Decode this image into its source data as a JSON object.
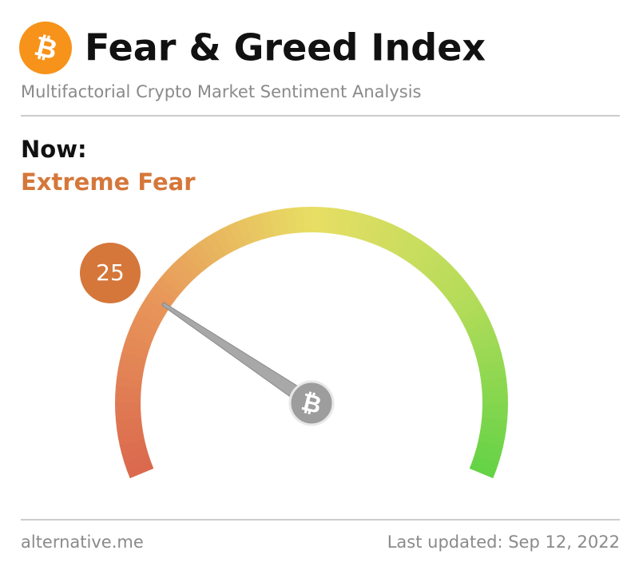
{
  "chart_data": {
    "type": "gauge",
    "title": "Fear & Greed Index",
    "subtitle": "Multifactorial Crypto Market Sentiment Analysis",
    "label": "Now:",
    "classification": "Extreme Fear",
    "value": 25,
    "ylim": [
      0,
      100
    ],
    "color": "#d5773a",
    "source": "alternative.me",
    "updated": "Last updated: Sep 12, 2022"
  }
}
